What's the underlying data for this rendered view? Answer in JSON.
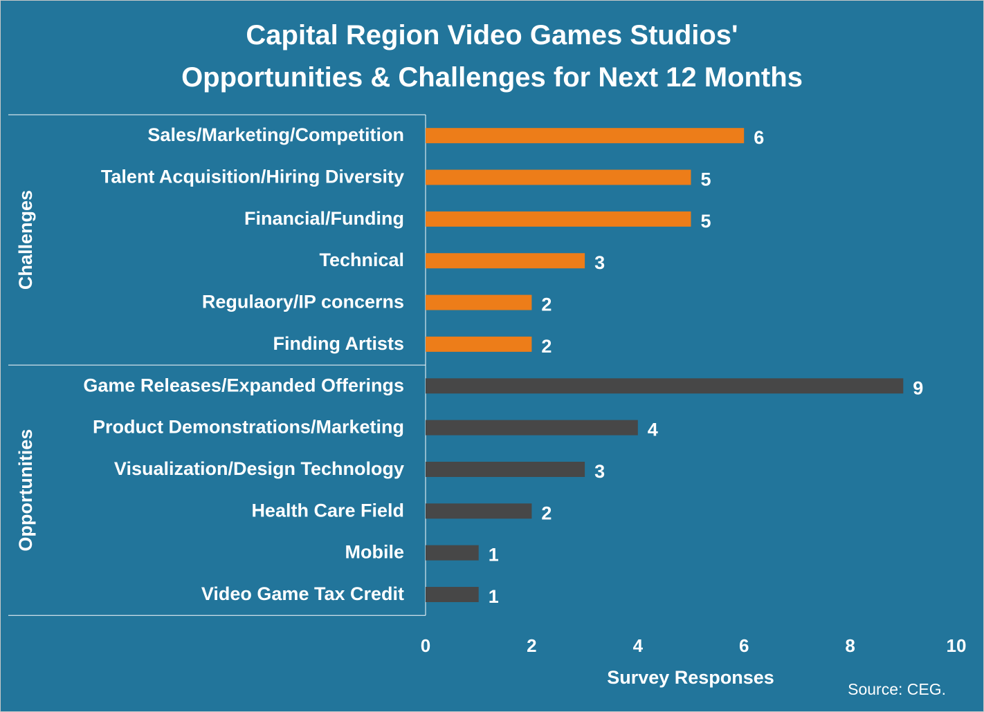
{
  "chart_data": {
    "type": "bar",
    "orientation": "horizontal",
    "title": [
      "Capital Region Video Games Studios'",
      "Opportunities & Challenges for Next 12 Months"
    ],
    "xlabel": "Survey Responses",
    "xlim": [
      0,
      10
    ],
    "xticks": [
      0,
      2,
      4,
      6,
      8,
      10
    ],
    "grid": false,
    "source": "Source:  CEG.",
    "groups": [
      {
        "name": "Challenges",
        "color": "#ed7d19",
        "categories": [
          "Sales/Marketing/Competition",
          "Talent Acquisition/Hiring Diversity",
          "Financial/Funding",
          "Technical",
          "Regulaory/IP concerns",
          "Finding Artists"
        ],
        "values": [
          6,
          5,
          5,
          3,
          2,
          2
        ]
      },
      {
        "name": "Opportunities",
        "color": "#474747",
        "categories": [
          "Game Releases/Expanded Offerings",
          "Product Demonstrations/Marketing",
          "Visualization/Design Technology",
          "Health Care Field",
          "Mobile",
          "Video Game Tax Credit"
        ],
        "values": [
          9,
          4,
          3,
          2,
          1,
          1
        ]
      }
    ]
  }
}
